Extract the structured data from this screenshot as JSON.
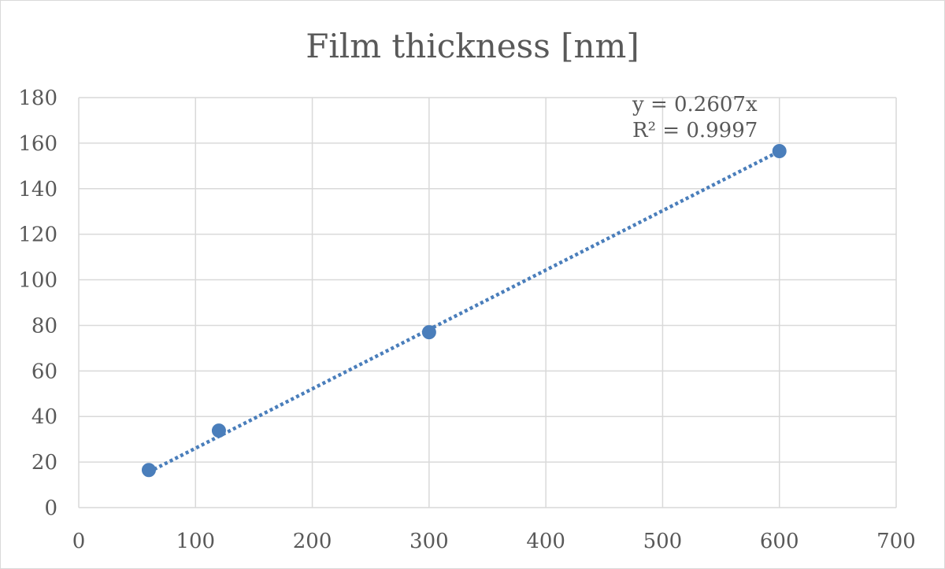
{
  "chart_data": {
    "type": "scatter",
    "title": "Film thickness [nm]",
    "xlabel": "",
    "ylabel": "",
    "xlim": [
      0,
      700
    ],
    "ylim": [
      0,
      180
    ],
    "xticks": [
      0,
      100,
      200,
      300,
      400,
      500,
      600,
      700
    ],
    "yticks": [
      0,
      20,
      40,
      60,
      80,
      100,
      120,
      140,
      160,
      180
    ],
    "grid": true,
    "legend": "none",
    "series": [
      {
        "x": [
          60,
          120,
          300,
          600
        ],
        "y": [
          16.5,
          33.8,
          77,
          156.5
        ],
        "color": "#4a7ebb",
        "marker": "circle"
      }
    ],
    "trendline": {
      "type": "linear-through-origin",
      "slope": 0.2607,
      "x_range": [
        60,
        600
      ],
      "style": "dotted",
      "color": "#4a7ebb",
      "equation_label": "y = 0.2607x",
      "r2_label": "R² = 0.9997"
    }
  }
}
